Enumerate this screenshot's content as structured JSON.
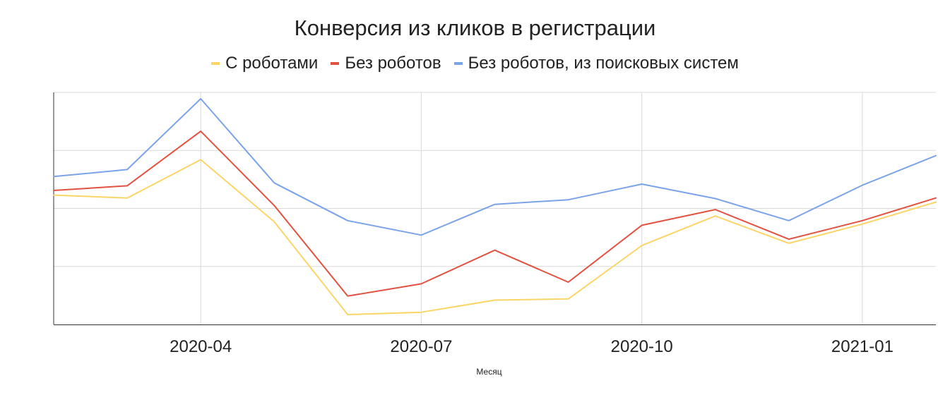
{
  "chart_data": {
    "type": "line",
    "title": "Конверсия из кликов в регистрации",
    "xlabel": "Месяц",
    "ylabel": "",
    "x": [
      "2020-02",
      "2020-03",
      "2020-04",
      "2020-05",
      "2020-06",
      "2020-07",
      "2020-08",
      "2020-09",
      "2020-10",
      "2020-11",
      "2020-12",
      "2021-01",
      "2021-02"
    ],
    "x_ticks": [
      "2020-04",
      "2020-07",
      "2020-10",
      "2021-01"
    ],
    "ylim": [
      0,
      4
    ],
    "y_gridlines": [
      1,
      2,
      3,
      4
    ],
    "grid": true,
    "legend_position": "top",
    "series": [
      {
        "name": "С роботами",
        "color": "#fbd568",
        "values": [
          2.23,
          2.18,
          2.84,
          1.77,
          0.17,
          0.21,
          0.42,
          0.44,
          1.36,
          1.87,
          1.4,
          1.73,
          2.11
        ]
      },
      {
        "name": "Без роботов",
        "color": "#e15241",
        "values": [
          2.31,
          2.39,
          3.33,
          2.05,
          0.49,
          0.7,
          1.28,
          0.73,
          1.71,
          1.98,
          1.47,
          1.79,
          2.18
        ]
      },
      {
        "name": "Без роботов, из поисковых систем",
        "color": "#7ba4e8",
        "values": [
          2.55,
          2.67,
          3.89,
          2.44,
          1.79,
          1.54,
          2.07,
          2.15,
          2.42,
          2.17,
          1.79,
          2.4,
          2.91
        ]
      }
    ]
  }
}
